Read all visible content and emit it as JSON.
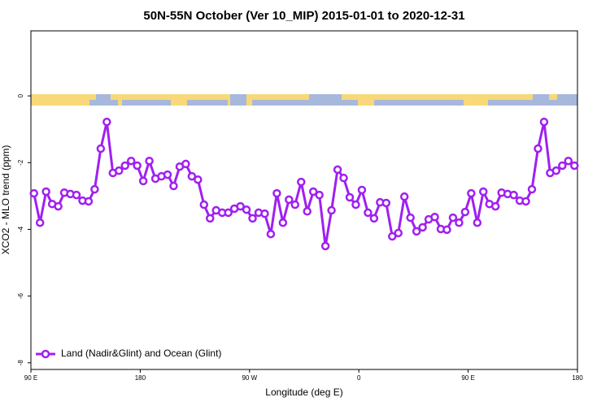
{
  "chart_data": {
    "type": "line",
    "title": "50N-55N October (Ver 10_MIP)   2015-01-01 to 2020-12-31",
    "x_label": "Longitude (deg E)",
    "y_label": "XCO2 - MLO trend (ppm)",
    "xlim": [
      90,
      540
    ],
    "ylim": [
      -8.2,
      1.95
    ],
    "xticks": [
      {
        "value": 90,
        "label": "90 E"
      },
      {
        "value": 180,
        "label": "180"
      },
      {
        "value": 270,
        "label": "90 W"
      },
      {
        "value": 360,
        "label": "0"
      },
      {
        "value": 450,
        "label": "90 E"
      },
      {
        "value": 540,
        "label": "180"
      }
    ],
    "yticks": [
      0,
      -2,
      -4,
      -6,
      -8
    ],
    "legend": "bottom-left",
    "x": [
      92.5,
      97.5,
      102.5,
      107.5,
      112.5,
      117.5,
      122.5,
      127.5,
      132.5,
      137.5,
      142.5,
      147.5,
      152.5,
      157.5,
      162.5,
      167.5,
      172.5,
      177.5,
      182.5,
      187.5,
      192.5,
      197.5,
      202.5,
      207.5,
      212.5,
      217.5,
      222.5,
      227.5,
      232.5,
      237.5,
      242.5,
      247.5,
      252.5,
      257.5,
      262.5,
      267.5,
      272.5,
      277.5,
      282.5,
      287.5,
      292.5,
      297.5,
      302.5,
      307.5,
      312.5,
      317.5,
      322.5,
      327.5,
      332.5,
      337.5,
      342.5,
      347.5,
      352.5,
      357.5,
      362.5,
      367.5,
      372.5,
      377.5,
      382.5,
      387.5,
      392.5,
      397.5,
      402.5,
      407.5,
      412.5,
      417.5,
      422.5,
      427.5,
      432.5,
      437.5,
      442.5,
      447.5,
      452.5,
      457.5,
      462.5,
      467.5,
      472.5,
      477.5,
      482.5,
      487.5,
      492.5,
      497.5,
      502.5,
      507.5,
      512.5,
      517.5,
      522.5,
      527.5,
      532.5,
      537.5
    ],
    "series": [
      {
        "name": "Land (Nadir&Glint) and Ocean (Glint)",
        "color": "#a020f0",
        "values": [
          -2.92,
          -3.8,
          -2.87,
          -3.24,
          -3.31,
          -2.9,
          -2.94,
          -2.97,
          -3.14,
          -3.16,
          -2.8,
          -1.58,
          -0.78,
          -2.31,
          -2.24,
          -2.09,
          -1.95,
          -2.09,
          -2.55,
          -1.95,
          -2.48,
          -2.41,
          -2.36,
          -2.7,
          -2.12,
          -2.04,
          -2.41,
          -2.51,
          -3.26,
          -3.67,
          -3.43,
          -3.5,
          -3.5,
          -3.38,
          -3.31,
          -3.41,
          -3.67,
          -3.5,
          -3.53,
          -4.14,
          -2.92,
          -3.8,
          -3.11,
          -3.26,
          -2.58,
          -3.46,
          -2.87,
          -2.97,
          -4.5,
          -3.43,
          -2.21,
          -2.46,
          -3.04,
          -3.26,
          -2.82,
          -3.5,
          -3.67,
          -3.19,
          -3.21,
          -4.21,
          -4.11,
          -3.02,
          -3.65,
          -4.06,
          -3.94,
          -3.7,
          -3.63,
          -3.99,
          -4.01,
          -3.65,
          -3.8,
          -3.48,
          -2.92,
          -3.8,
          -2.87,
          -3.24,
          -3.31,
          -2.9,
          -2.94,
          -2.97,
          -3.14,
          -3.16,
          -2.8,
          -1.58,
          -0.78,
          -2.31,
          -2.24,
          -2.09,
          -1.95,
          -2.09
        ]
      }
    ]
  }
}
